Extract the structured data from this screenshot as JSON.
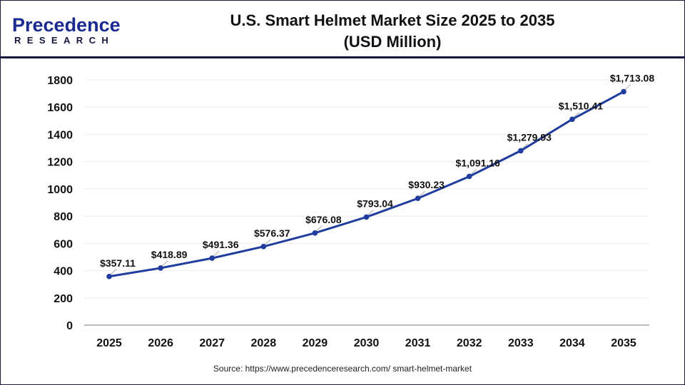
{
  "logo": {
    "line1": "Precedence",
    "line2": "RESEARCH"
  },
  "source": "Source: https://www.precedenceresearch.com/ smart-helmet-market",
  "chart_data": {
    "type": "line",
    "title": "U.S. Smart Helmet Market Size 2025 to 2035",
    "subtitle": "(USD Million)",
    "categories": [
      "2025",
      "2026",
      "2027",
      "2028",
      "2029",
      "2030",
      "2031",
      "2032",
      "2033",
      "2034",
      "2035"
    ],
    "values": [
      357.11,
      418.89,
      491.36,
      576.37,
      676.08,
      793.04,
      930.23,
      1091.16,
      1279.93,
      1510.41,
      1713.08
    ],
    "data_labels": [
      "$357.11",
      "$418.89",
      "$491.36",
      "$576.37",
      "$676.08",
      "$793.04",
      "$930.23",
      "$1,091.16",
      "$1,279.93",
      "$1,510.41",
      "$1,713.08"
    ],
    "yticks": [
      0,
      200,
      400,
      600,
      800,
      1000,
      1200,
      1400,
      1600,
      1800
    ],
    "ylim": [
      0,
      1800
    ],
    "grid": true,
    "color": "#1f3c9e"
  }
}
